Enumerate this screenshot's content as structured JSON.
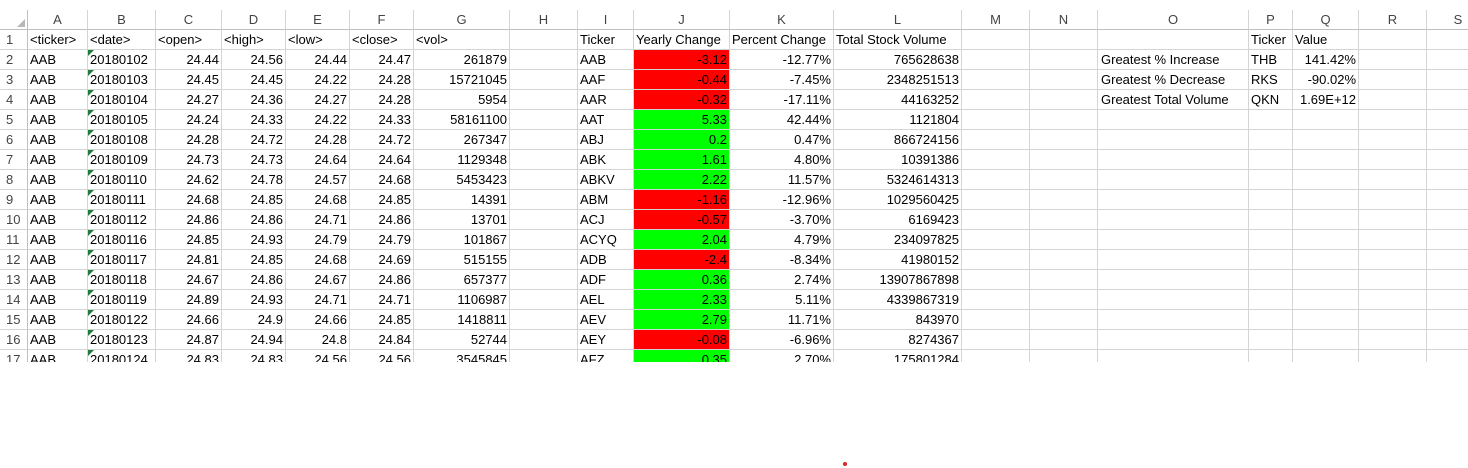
{
  "columns": [
    "A",
    "B",
    "C",
    "D",
    "E",
    "F",
    "G",
    "H",
    "I",
    "J",
    "K",
    "L",
    "M",
    "N",
    "O",
    "P",
    "Q",
    "R",
    "S"
  ],
  "row_numbers": [
    "1",
    "2",
    "3",
    "4",
    "5",
    "6",
    "7",
    "8",
    "9",
    "10",
    "11",
    "12",
    "13",
    "14",
    "15",
    "16",
    "17"
  ],
  "raw_headers": [
    "<ticker>",
    "<date>",
    "<open>",
    "<high>",
    "<low>",
    "<close>",
    "<vol>"
  ],
  "raw_rows": [
    [
      "AAB",
      "20180102",
      "24.44",
      "24.56",
      "24.44",
      "24.47",
      "261879"
    ],
    [
      "AAB",
      "20180103",
      "24.45",
      "24.45",
      "24.22",
      "24.28",
      "15721045"
    ],
    [
      "AAB",
      "20180104",
      "24.27",
      "24.36",
      "24.27",
      "24.28",
      "5954"
    ],
    [
      "AAB",
      "20180105",
      "24.24",
      "24.33",
      "24.22",
      "24.33",
      "58161100"
    ],
    [
      "AAB",
      "20180108",
      "24.28",
      "24.72",
      "24.28",
      "24.72",
      "267347"
    ],
    [
      "AAB",
      "20180109",
      "24.73",
      "24.73",
      "24.64",
      "24.64",
      "1129348"
    ],
    [
      "AAB",
      "20180110",
      "24.62",
      "24.78",
      "24.57",
      "24.68",
      "5453423"
    ],
    [
      "AAB",
      "20180111",
      "24.68",
      "24.85",
      "24.68",
      "24.85",
      "14391"
    ],
    [
      "AAB",
      "20180112",
      "24.86",
      "24.86",
      "24.71",
      "24.86",
      "13701"
    ],
    [
      "AAB",
      "20180116",
      "24.85",
      "24.93",
      "24.79",
      "24.79",
      "101867"
    ],
    [
      "AAB",
      "20180117",
      "24.81",
      "24.85",
      "24.68",
      "24.69",
      "515155"
    ],
    [
      "AAB",
      "20180118",
      "24.67",
      "24.86",
      "24.67",
      "24.86",
      "657377"
    ],
    [
      "AAB",
      "20180119",
      "24.89",
      "24.93",
      "24.71",
      "24.71",
      "1106987"
    ],
    [
      "AAB",
      "20180122",
      "24.66",
      "24.9",
      "24.66",
      "24.85",
      "1418811"
    ],
    [
      "AAB",
      "20180123",
      "24.87",
      "24.94",
      "24.8",
      "24.84",
      "52744"
    ],
    [
      "AAB",
      "20180124",
      "24.83",
      "24.83",
      "24.56",
      "24.56",
      "3545845"
    ]
  ],
  "summary_headers": [
    "Ticker",
    "Yearly Change",
    "Percent Change",
    "Total Stock Volume"
  ],
  "summary_rows": [
    {
      "ticker": "AAB",
      "change": "-3.12",
      "status": "negative",
      "percent": "-12.77%",
      "volume": "765628638"
    },
    {
      "ticker": "AAF",
      "change": "-0.44",
      "status": "negative",
      "percent": "-7.45%",
      "volume": "2348251513"
    },
    {
      "ticker": "AAR",
      "change": "-0.32",
      "status": "negative",
      "percent": "-17.11%",
      "volume": "44163252"
    },
    {
      "ticker": "AAT",
      "change": "5.33",
      "status": "positive",
      "percent": "42.44%",
      "volume": "1121804"
    },
    {
      "ticker": "ABJ",
      "change": "0.2",
      "status": "positive",
      "percent": "0.47%",
      "volume": "866724156"
    },
    {
      "ticker": "ABK",
      "change": "1.61",
      "status": "positive",
      "percent": "4.80%",
      "volume": "10391386"
    },
    {
      "ticker": "ABKV",
      "change": "2.22",
      "status": "positive",
      "percent": "11.57%",
      "volume": "5324614313"
    },
    {
      "ticker": "ABM",
      "change": "-1.16",
      "status": "negative",
      "percent": "-12.96%",
      "volume": "1029560425"
    },
    {
      "ticker": "ACJ",
      "change": "-0.57",
      "status": "negative",
      "percent": "-3.70%",
      "volume": "6169423"
    },
    {
      "ticker": "ACYQ",
      "change": "2.04",
      "status": "positive",
      "percent": "4.79%",
      "volume": "234097825"
    },
    {
      "ticker": "ADB",
      "change": "-2.4",
      "status": "negative",
      "percent": "-8.34%",
      "volume": "41980152"
    },
    {
      "ticker": "ADF",
      "change": "0.36",
      "status": "positive",
      "percent": "2.74%",
      "volume": "13907867898"
    },
    {
      "ticker": "AEL",
      "change": "2.33",
      "status": "positive",
      "percent": "5.11%",
      "volume": "4339867319"
    },
    {
      "ticker": "AEV",
      "change": "2.79",
      "status": "positive",
      "percent": "11.71%",
      "volume": "843970"
    },
    {
      "ticker": "AEY",
      "change": "-0.08",
      "status": "negative",
      "percent": "-6.96%",
      "volume": "8274367"
    },
    {
      "ticker": "AFZ",
      "change": "0.35",
      "status": "positive",
      "percent": "2.70%",
      "volume": "175801284"
    }
  ],
  "greatest_headers": [
    "Ticker",
    "Value"
  ],
  "greatest_rows": [
    {
      "label": "Greatest % Increase",
      "ticker": "THB",
      "value": "141.42%"
    },
    {
      "label": "Greatest % Decrease",
      "ticker": "RKS",
      "value": "-90.02%"
    },
    {
      "label": "Greatest Total Volume",
      "ticker": "QKN",
      "value": "1.69E+12"
    }
  ],
  "colors": {
    "positive": "#00ff00",
    "negative": "#ff0000",
    "gridline": "#d4d4d4",
    "header_text": "#444444"
  },
  "icons": {
    "select_all": "select-all-triangle-icon",
    "number_as_text": "error-indicator-triangle-icon"
  }
}
